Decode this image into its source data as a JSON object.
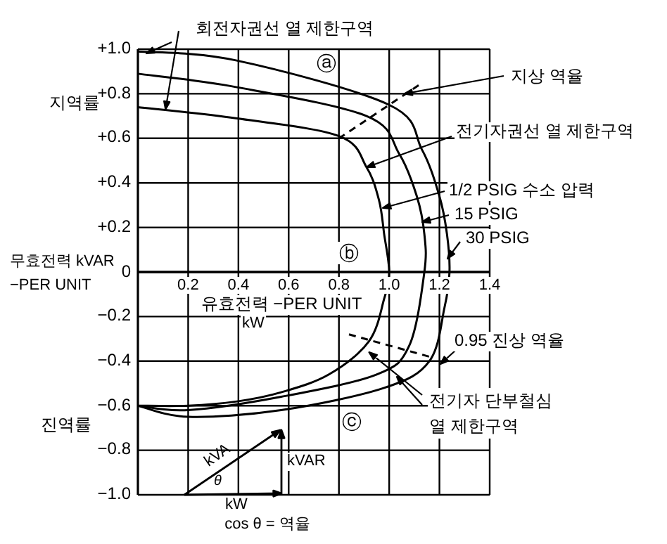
{
  "chart_data": {
    "type": "line",
    "xlabel": "유효전력 −PER UNIT",
    "ylabel": "무효전력 kVAR −PER UNIT",
    "xlim": [
      0,
      1.4
    ],
    "ylim": [
      -1,
      1
    ],
    "xticks": [
      0.2,
      0.4,
      0.6,
      0.8,
      {
        "value": 1,
        "label": "1.0"
      },
      1.2,
      1.4
    ],
    "yticks": [
      {
        "value": 1,
        "label": "+1.0"
      },
      {
        "value": 0.8,
        "label": "+0.8"
      },
      {
        "value": 0.6,
        "label": "+0.6"
      },
      {
        "value": 0.4,
        "label": "+0.4"
      },
      {
        "value": 0.2,
        "label": "+0.2"
      },
      0,
      {
        "value": -0.2,
        "label": "−0.2"
      },
      {
        "value": -0.4,
        "label": "−0.4"
      },
      {
        "value": -0.6,
        "label": "−0.6"
      },
      {
        "value": -0.8,
        "label": "−0.8"
      },
      {
        "value": -1,
        "label": "−1.0"
      }
    ],
    "grid": true,
    "marker": "none",
    "legend": "right",
    "series": [
      {
        "name": "1/2 PSIG 수소 압력",
        "color": "#000000",
        "line_style": "solid",
        "x": [
          0,
          0.39,
          0.8,
          0.91,
          0.96,
          0.98,
          1.0,
          0.98,
          0.92,
          0.76,
          0.57,
          0.4,
          0.2,
          0
        ],
        "values": [
          0.74,
          0.69,
          0.61,
          0.47,
          0.32,
          0.17,
          0,
          -0.12,
          -0.31,
          -0.46,
          -0.54,
          -0.58,
          -0.6,
          -0.6
        ]
      },
      {
        "name": "15 PSIG",
        "color": "#000000",
        "line_style": "solid",
        "x": [
          0,
          0.39,
          0.91,
          1.04,
          1.11,
          1.14,
          1.14,
          1.08,
          0.95,
          0.57,
          0.2,
          0
        ],
        "values": [
          0.89,
          0.83,
          0.7,
          0.53,
          0.34,
          0.17,
          0,
          -0.33,
          -0.46,
          -0.56,
          -0.62,
          -0.6
        ]
      },
      {
        "name": "30 PSIG",
        "color": "#000000",
        "line_style": "solid",
        "x": [
          0,
          0.39,
          1.0,
          1.13,
          1.2,
          1.23,
          1.24,
          1.22,
          1.16,
          0.98,
          0.57,
          0.2,
          0
        ],
        "values": [
          0.99,
          0.95,
          0.75,
          0.55,
          0.34,
          0.17,
          0,
          -0.16,
          -0.4,
          -0.52,
          -0.62,
          -0.65,
          -0.6
        ]
      },
      {
        "color": "#000000",
        "line_style": "dashed",
        "x": [
          0.8,
          1.0,
          1.12
        ],
        "values": [
          0.6,
          0.75,
          0.84
        ]
      },
      {
        "color": "#000000",
        "line_style": "dashed",
        "x": [
          0.84,
          1.16
        ],
        "values": [
          -0.28,
          -0.38
        ]
      }
    ],
    "annotations": [
      {
        "text": "회전자권선 열 제한구역",
        "x": 0.11,
        "y": 0.73
      },
      {
        "text": "지상 역율",
        "x": 1.06,
        "y": 0.8
      },
      {
        "text": "전기자권선 열 제한구역",
        "x": 0.91,
        "y": 0.47
      },
      "ⓐ",
      "ⓑ",
      "ⓒ",
      "0.95 진상 역율",
      {
        "text": "전기자 단부철심 열 제한구역",
        "x": 0.92,
        "y": -0.36
      },
      "지역률",
      "진역률",
      "kW",
      "kVA",
      "θ",
      "kVAR",
      "kW",
      "cos θ = 역율"
    ]
  }
}
